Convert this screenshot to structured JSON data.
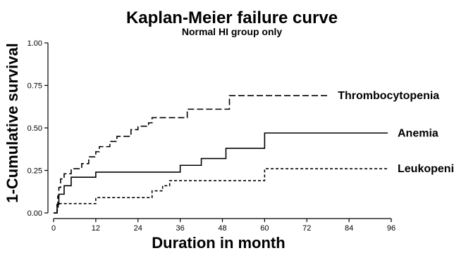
{
  "chart_data": {
    "type": "line",
    "title": "Kaplan-Meier failure curve",
    "subtitle": "Normal HI group only",
    "xlabel": "Duration in month",
    "ylabel": "1-Cumulative survival",
    "xlim": [
      0,
      96
    ],
    "ylim": [
      0,
      1.0
    ],
    "x_ticks": [
      0,
      12,
      24,
      36,
      48,
      60,
      72,
      84,
      96
    ],
    "x_tick_labels": [
      "0",
      "12",
      "24",
      "36",
      "48",
      "60",
      "72",
      "84",
      "96"
    ],
    "y_ticks": [
      0,
      0.25,
      0.5,
      0.75,
      1.0
    ],
    "y_tick_labels": [
      "0.00",
      "0.25",
      "0.50",
      "0.75",
      "1.00"
    ],
    "grid": false,
    "legend": "direct labels at right end of each curve",
    "series": [
      {
        "name": "Thrombocytopenia",
        "style": "long-dash",
        "color": "#000000",
        "steps": [
          [
            0,
            0.0
          ],
          [
            1,
            0.05
          ],
          [
            1.2,
            0.1
          ],
          [
            1.5,
            0.15
          ],
          [
            2,
            0.2
          ],
          [
            3,
            0.23
          ],
          [
            5,
            0.26
          ],
          [
            8,
            0.29
          ],
          [
            10,
            0.33
          ],
          [
            12,
            0.36
          ],
          [
            13,
            0.39
          ],
          [
            16,
            0.42
          ],
          [
            18,
            0.45
          ],
          [
            22,
            0.49
          ],
          [
            24,
            0.51
          ],
          [
            27,
            0.53
          ],
          [
            28,
            0.56
          ],
          [
            38,
            0.61
          ],
          [
            50,
            0.69
          ],
          [
            78,
            0.69
          ]
        ]
      },
      {
        "name": "Anemia",
        "style": "solid",
        "color": "#000000",
        "steps": [
          [
            0,
            0.0
          ],
          [
            1,
            0.05
          ],
          [
            1.5,
            0.11
          ],
          [
            3,
            0.16
          ],
          [
            5,
            0.21
          ],
          [
            12,
            0.24
          ],
          [
            36,
            0.28
          ],
          [
            42,
            0.32
          ],
          [
            49,
            0.38
          ],
          [
            60,
            0.47
          ],
          [
            95,
            0.47
          ]
        ]
      },
      {
        "name": "Leukopenia",
        "style": "short-dash",
        "color": "#000000",
        "steps": [
          [
            0,
            0.0
          ],
          [
            1,
            0.02
          ],
          [
            1.3,
            0.055
          ],
          [
            12,
            0.09
          ],
          [
            28,
            0.13
          ],
          [
            31,
            0.16
          ],
          [
            33,
            0.19
          ],
          [
            60,
            0.26
          ],
          [
            95,
            0.26
          ]
        ]
      }
    ]
  }
}
